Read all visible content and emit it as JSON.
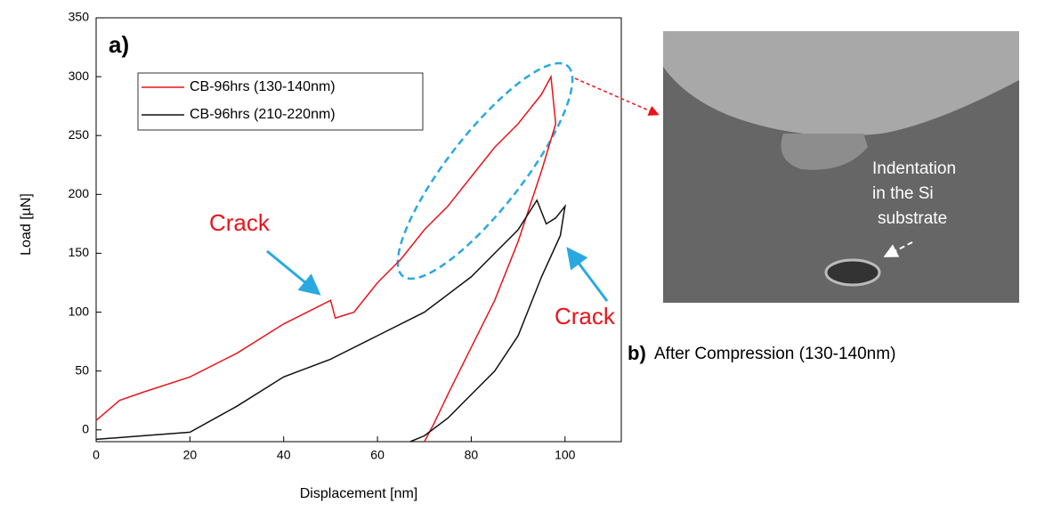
{
  "chart_data": {
    "type": "line",
    "xlabel": "Displacement [nm]",
    "ylabel": "Load [µN]",
    "xlim": [
      0,
      112
    ],
    "ylim": [
      -10,
      350
    ],
    "xticks": [
      0,
      20,
      40,
      60,
      80,
      100
    ],
    "yticks": [
      0,
      50,
      100,
      150,
      200,
      250,
      300,
      350
    ],
    "legend": "upper left",
    "series": [
      {
        "name": "CB-96hrs (130-140nm)",
        "color": "#e8141c",
        "x": [
          0,
          5,
          10,
          20,
          30,
          40,
          45,
          50,
          51,
          55,
          60,
          65,
          70,
          75,
          80,
          85,
          90,
          95,
          97,
          98,
          95,
          90,
          85,
          80,
          75,
          72,
          70
        ],
        "values": [
          8,
          25,
          32,
          45,
          65,
          90,
          100,
          110,
          95,
          100,
          125,
          145,
          170,
          190,
          215,
          240,
          260,
          285,
          300,
          260,
          220,
          160,
          110,
          70,
          30,
          5,
          -10
        ]
      },
      {
        "name": "CB-96hrs (210-220nm)",
        "color": "#111111",
        "x": [
          0,
          10,
          20,
          30,
          40,
          50,
          60,
          70,
          80,
          85,
          90,
          94,
          96,
          98,
          100,
          99,
          95,
          90,
          85,
          80,
          75,
          70,
          67
        ],
        "values": [
          -8,
          -5,
          -2,
          20,
          45,
          60,
          80,
          100,
          130,
          150,
          170,
          195,
          175,
          180,
          190,
          165,
          130,
          80,
          50,
          30,
          10,
          -5,
          -10
        ]
      }
    ],
    "annotations": [
      "a)",
      "Crack",
      "Crack"
    ]
  },
  "image_panel": {
    "label": "b)",
    "caption": "After Compression (130-140nm)",
    "annotation_lines": [
      "Indentation",
      "in the Si",
      "substrate"
    ]
  }
}
